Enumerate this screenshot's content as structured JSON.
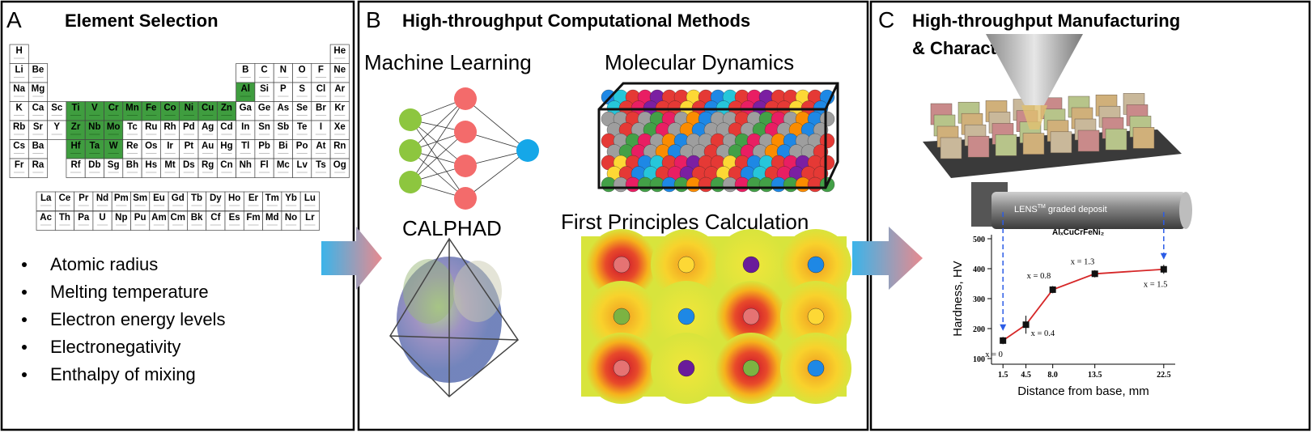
{
  "panel_a": {
    "letter": "A",
    "title": "Element Selection",
    "periodic_table": {
      "periods": [
        [
          "H",
          "He"
        ],
        [
          "Li",
          "Be",
          "B",
          "C",
          "N",
          "O",
          "F",
          "Ne"
        ],
        [
          "Na",
          "Mg",
          "Al",
          "Si",
          "P",
          "S",
          "Cl",
          "Ar"
        ],
        [
          "K",
          "Ca",
          "Sc",
          "Ti",
          "V",
          "Cr",
          "Mn",
          "Fe",
          "Co",
          "Ni",
          "Cu",
          "Zn",
          "Ga",
          "Ge",
          "As",
          "Se",
          "Br",
          "Kr"
        ],
        [
          "Rb",
          "Sr",
          "Y",
          "Zr",
          "Nb",
          "Mo",
          "Tc",
          "Ru",
          "Rh",
          "Pd",
          "Ag",
          "Cd",
          "In",
          "Sn",
          "Sb",
          "Te",
          "I",
          "Xe"
        ],
        [
          "Cs",
          "Ba",
          "Hf",
          "Ta",
          "W",
          "Re",
          "Os",
          "Ir",
          "Pt",
          "Au",
          "Hg",
          "Tl",
          "Pb",
          "Bi",
          "Po",
          "At",
          "Rn"
        ],
        [
          "Fr",
          "Ra",
          "Rf",
          "Db",
          "Sg",
          "Bh",
          "Hs",
          "Mt",
          "Ds",
          "Rg",
          "Cn",
          "Nh",
          "Fl",
          "Mc",
          "Lv",
          "Ts",
          "Og"
        ]
      ],
      "f_block": [
        [
          "La",
          "Ce",
          "Pr",
          "Nd",
          "Pm",
          "Sm",
          "Eu",
          "Gd",
          "Tb",
          "Dy",
          "Ho",
          "Er",
          "Tm",
          "Yb",
          "Lu"
        ],
        [
          "Ac",
          "Th",
          "Pa",
          "U",
          "Np",
          "Pu",
          "Am",
          "Cm",
          "Bk",
          "Cf",
          "Es",
          "Fm",
          "Md",
          "No",
          "Lr"
        ]
      ],
      "highlighted": [
        "Al",
        "Ti",
        "V",
        "Cr",
        "Mn",
        "Fe",
        "Co",
        "Ni",
        "Cu",
        "Zn",
        "Zr",
        "Nb",
        "Mo",
        "Hf",
        "Ta",
        "W"
      ],
      "highlight_color": "#3f9d3f"
    },
    "properties": [
      "Atomic radius",
      "Melting temperature",
      "Electron energy levels",
      "Electronegativity",
      "Enthalpy of mixing"
    ]
  },
  "panel_b": {
    "letter": "B",
    "title": "High-throughput Computational Methods",
    "methods": [
      "Machine Learning",
      "Molecular Dynamics",
      "CALPHAD",
      "First Principles Calculation"
    ]
  },
  "panel_c": {
    "letter": "C",
    "title_lines": [
      "High-throughput Manufacturing",
      "& Characterization"
    ],
    "deposit_label": {
      "text": "LENS",
      "superscript": "TM",
      "rest": " graded deposit"
    },
    "hardness_chart": {
      "type": "line",
      "title": "AlₓCuCrFeNi₂",
      "x": [
        1.5,
        4.5,
        8,
        13.5,
        22.5
      ],
      "values": [
        160,
        213,
        330,
        383,
        398
      ],
      "errors": [
        12,
        30,
        12,
        12,
        15
      ],
      "point_labels": [
        "x = 0",
        "x = 0.4",
        "x = 0.8",
        "x = 1.3",
        "x = 1.5"
      ],
      "color": "#d62728",
      "xlim": [
        0,
        24
      ],
      "ylim": [
        100,
        500
      ],
      "xticks": [
        1.5,
        4.5,
        {
          "value": 8,
          "label": "8.0"
        },
        13.5,
        22.5
      ],
      "yticks": [
        100,
        200,
        300,
        400,
        500
      ],
      "xlabel": "Distance from base, mm",
      "ylabel": "Hardness, HV"
    }
  }
}
